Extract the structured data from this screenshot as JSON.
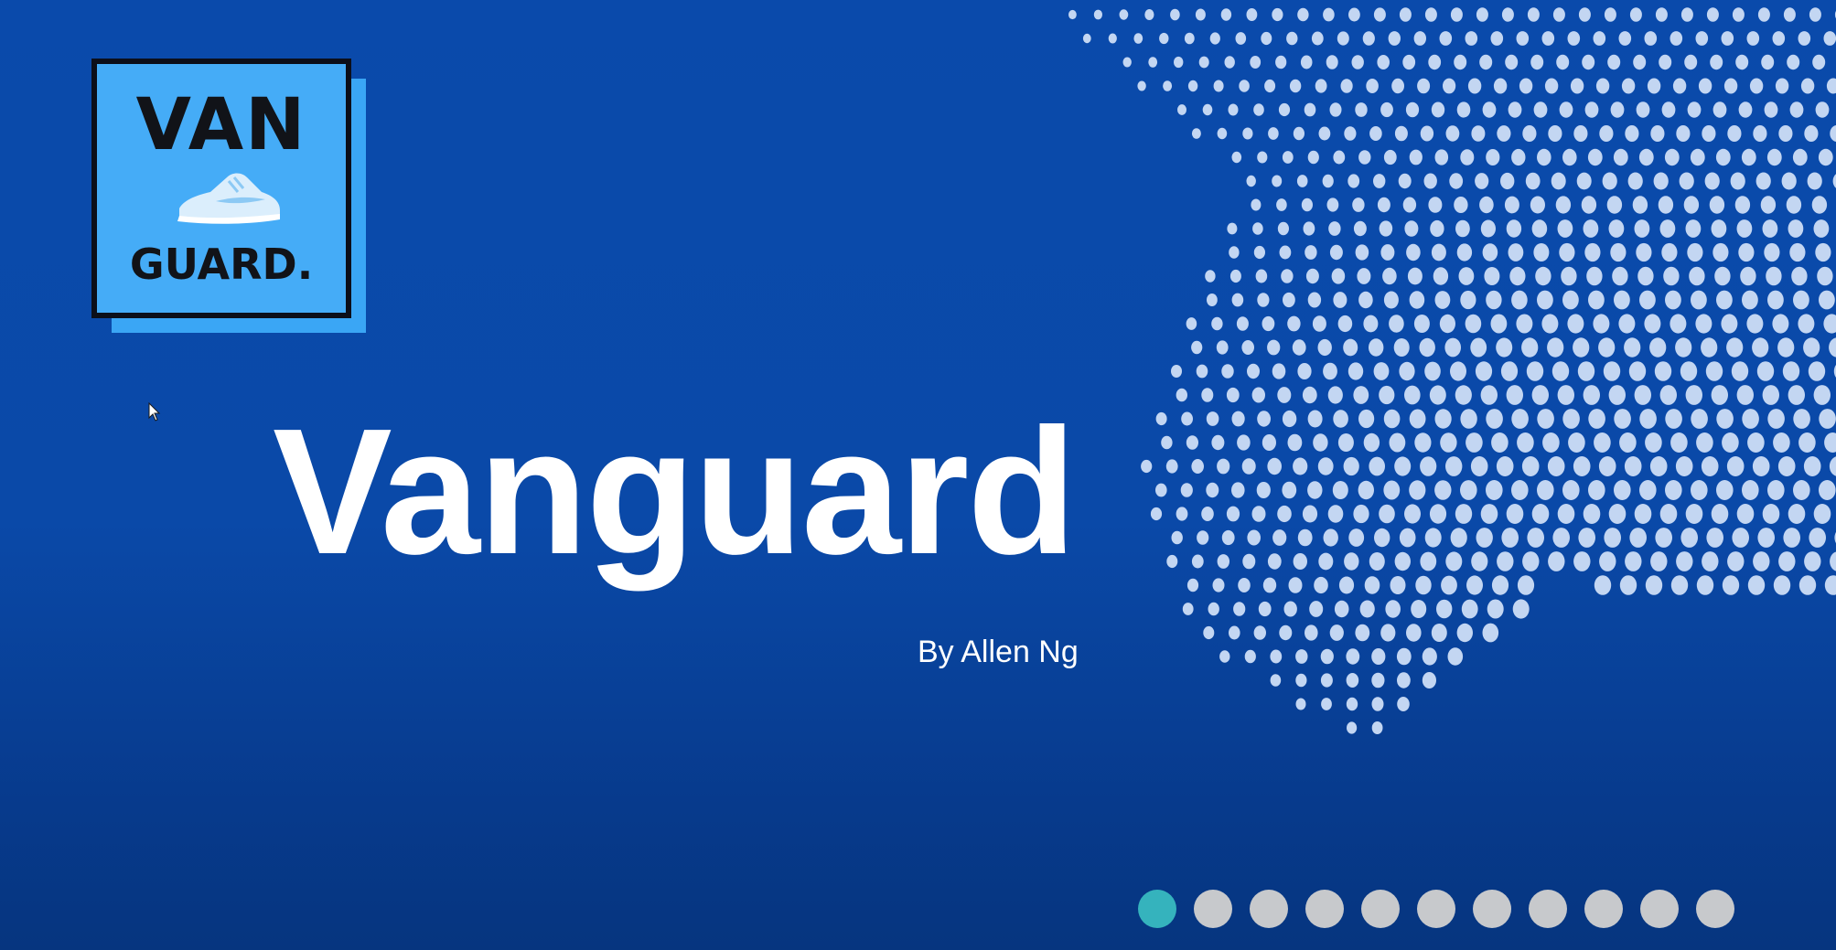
{
  "slide": {
    "title": "Vanguard",
    "subtitle": "By Allen Ng"
  },
  "logo": {
    "line1": "VAN",
    "line2": "GUARD.",
    "icon": "sneaker-icon"
  },
  "pager": {
    "total": 11,
    "active_index": 0
  },
  "colors": {
    "background": "#0a4aab",
    "dots": "#c3d6f2",
    "logo_fill": "#45acf7",
    "pager_active": "#35b3bd",
    "pager_inactive": "#c7c9cc"
  }
}
